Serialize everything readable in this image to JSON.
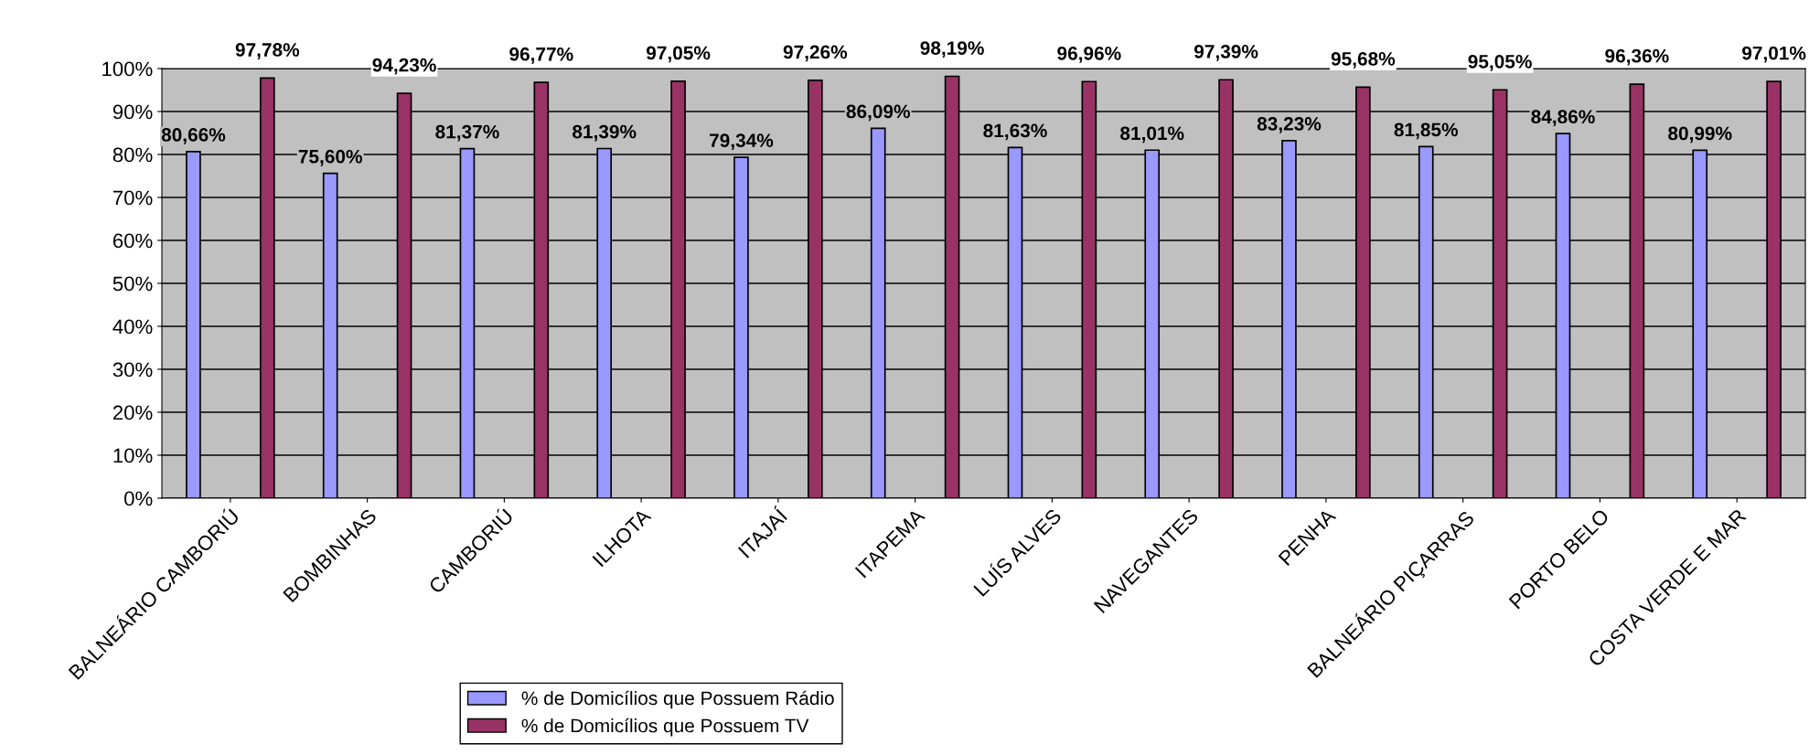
{
  "chart_data": {
    "type": "bar",
    "categories": [
      "BALNEÁRIO CAMBORIÚ",
      "BOMBINHAS",
      "CAMBORIÚ",
      "ILHOTA",
      "ITAJAÍ",
      "ITAPEMA",
      "LUÍS ALVES",
      "NAVEGANTES",
      "PENHA",
      "BALNEÁRIO PIÇARRAS",
      "PORTO BELO",
      "COSTA VERDE E MAR"
    ],
    "series": [
      {
        "name": "% de Domicílios que Possuem Rádio",
        "color": "#9999ff",
        "values": [
          80.66,
          75.6,
          81.37,
          81.39,
          79.34,
          86.09,
          81.63,
          81.01,
          83.23,
          81.85,
          84.86,
          80.99
        ],
        "value_labels": [
          "80,66%",
          "75,60%",
          "81,37%",
          "81,39%",
          "79,34%",
          "86,09%",
          "81,63%",
          "81,01%",
          "83,23%",
          "81,85%",
          "84,86%",
          "80,99%"
        ]
      },
      {
        "name": "% de Domicílios que Possuem TV",
        "color": "#993366",
        "values": [
          97.78,
          94.23,
          96.77,
          97.05,
          97.26,
          98.19,
          96.96,
          97.39,
          95.68,
          95.05,
          96.36,
          97.01
        ],
        "value_labels": [
          "97,78%",
          "94,23%",
          "96,77%",
          "97,05%",
          "97,26%",
          "98,19%",
          "96,96%",
          "97,39%",
          "95,68%",
          "95,05%",
          "96,36%",
          "97,01%"
        ]
      }
    ],
    "ylim": [
      0,
      100
    ],
    "yticks": [
      {
        "value": 0,
        "label": "0%"
      },
      {
        "value": 10,
        "label": "10%"
      },
      {
        "value": 20,
        "label": "20%"
      },
      {
        "value": 30,
        "label": "30%"
      },
      {
        "value": 40,
        "label": "40%"
      },
      {
        "value": 50,
        "label": "50%"
      },
      {
        "value": 60,
        "label": "60%"
      },
      {
        "value": 70,
        "label": "70%"
      },
      {
        "value": 80,
        "label": "80%"
      },
      {
        "value": 90,
        "label": "90%"
      },
      {
        "value": 100,
        "label": "100%"
      }
    ],
    "grid": "y",
    "legend": "bottom"
  }
}
